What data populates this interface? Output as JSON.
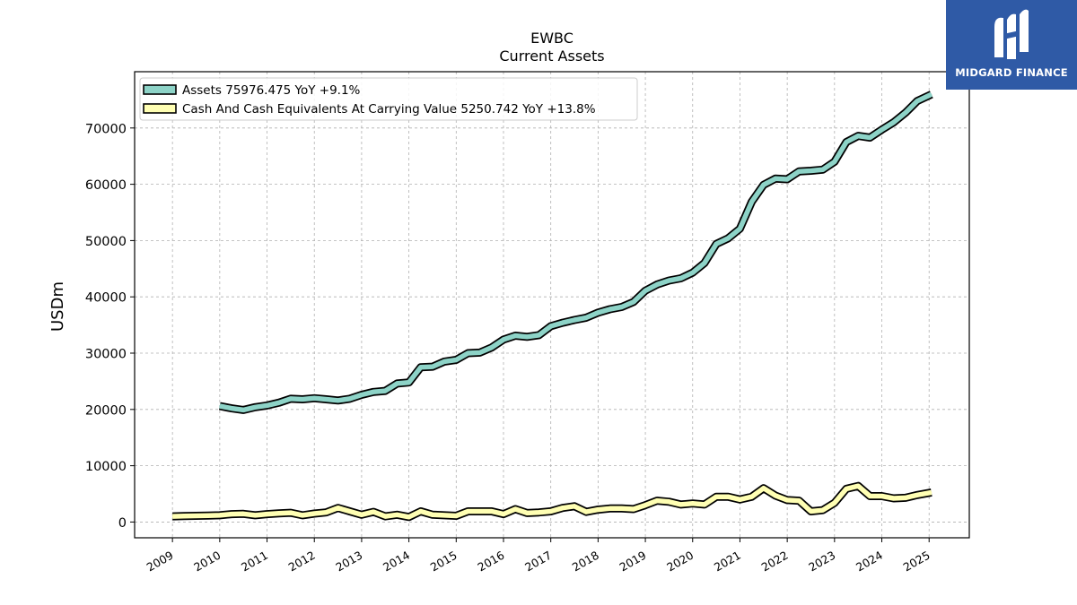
{
  "chart_data": {
    "type": "line",
    "title": "EWBC",
    "subtitle": "Current  Assets",
    "ylabel": "USDm",
    "xlabel": "",
    "ylim": [
      -2800,
      80000
    ],
    "xlim": [
      2008.2,
      2025.85
    ],
    "yticks": [
      0,
      10000,
      20000,
      30000,
      40000,
      50000,
      60000,
      70000
    ],
    "xticks": [
      "2009",
      "2010",
      "2011",
      "2012",
      "2013",
      "2014",
      "2015",
      "2016",
      "2017",
      "2018",
      "2019",
      "2020",
      "2021",
      "2022",
      "2023",
      "2024",
      "2025"
    ],
    "grid": true,
    "legend_position": "top-left",
    "series": [
      {
        "name": "Assets",
        "legend_label": "Assets  75976.475 YoY +9.1%",
        "color": "#8dd3c7",
        "points": [
          [
            2010.0,
            20600
          ],
          [
            2010.25,
            20200
          ],
          [
            2010.5,
            19900
          ],
          [
            2010.75,
            20400
          ],
          [
            2011.0,
            20700
          ],
          [
            2011.25,
            21200
          ],
          [
            2011.5,
            21900
          ],
          [
            2011.75,
            21800
          ],
          [
            2012.0,
            22000
          ],
          [
            2012.25,
            21800
          ],
          [
            2012.5,
            21600
          ],
          [
            2012.75,
            21900
          ],
          [
            2013.0,
            22600
          ],
          [
            2013.25,
            23100
          ],
          [
            2013.5,
            23300
          ],
          [
            2013.75,
            24600
          ],
          [
            2014.0,
            24800
          ],
          [
            2014.25,
            27500
          ],
          [
            2014.5,
            27600
          ],
          [
            2014.75,
            28500
          ],
          [
            2015.0,
            28800
          ],
          [
            2015.25,
            30000
          ],
          [
            2015.5,
            30100
          ],
          [
            2015.75,
            31000
          ],
          [
            2016.0,
            32400
          ],
          [
            2016.25,
            33100
          ],
          [
            2016.5,
            32900
          ],
          [
            2016.75,
            33200
          ],
          [
            2017.0,
            34800
          ],
          [
            2017.25,
            35400
          ],
          [
            2017.5,
            35900
          ],
          [
            2017.75,
            36300
          ],
          [
            2018.0,
            37200
          ],
          [
            2018.25,
            37800
          ],
          [
            2018.5,
            38200
          ],
          [
            2018.75,
            39100
          ],
          [
            2019.0,
            41100
          ],
          [
            2019.25,
            42200
          ],
          [
            2019.5,
            42900
          ],
          [
            2019.75,
            43300
          ],
          [
            2020.0,
            44300
          ],
          [
            2020.25,
            46000
          ],
          [
            2020.5,
            49400
          ],
          [
            2020.75,
            50400
          ],
          [
            2021.0,
            52100
          ],
          [
            2021.25,
            56900
          ],
          [
            2021.5,
            59900
          ],
          [
            2021.75,
            61000
          ],
          [
            2022.0,
            60900
          ],
          [
            2022.25,
            62300
          ],
          [
            2022.5,
            62400
          ],
          [
            2022.75,
            62600
          ],
          [
            2023.0,
            64000
          ],
          [
            2023.25,
            67500
          ],
          [
            2023.5,
            68600
          ],
          [
            2023.75,
            68300
          ],
          [
            2024.0,
            69700
          ],
          [
            2024.25,
            71000
          ],
          [
            2024.5,
            72700
          ],
          [
            2024.75,
            74800
          ],
          [
            2025.05,
            75976
          ]
        ]
      },
      {
        "name": "Cash And Cash Equivalents At Carrying Value",
        "legend_label": "Cash And Cash Equivalents At Carrying Value  5250.742 YoY +13.8%",
        "color": "#ffffb3",
        "points": [
          [
            2009.0,
            1000
          ],
          [
            2009.25,
            1050
          ],
          [
            2009.5,
            1100
          ],
          [
            2009.75,
            1150
          ],
          [
            2010.0,
            1200
          ],
          [
            2010.25,
            1400
          ],
          [
            2010.5,
            1450
          ],
          [
            2010.75,
            1200
          ],
          [
            2011.0,
            1400
          ],
          [
            2011.25,
            1550
          ],
          [
            2011.5,
            1650
          ],
          [
            2011.75,
            1200
          ],
          [
            2012.0,
            1500
          ],
          [
            2012.25,
            1700
          ],
          [
            2012.5,
            2500
          ],
          [
            2012.75,
            1900
          ],
          [
            2013.0,
            1300
          ],
          [
            2013.25,
            1800
          ],
          [
            2013.5,
            1000
          ],
          [
            2013.75,
            1300
          ],
          [
            2014.0,
            900
          ],
          [
            2014.25,
            1900
          ],
          [
            2014.5,
            1300
          ],
          [
            2014.75,
            1200
          ],
          [
            2015.0,
            1100
          ],
          [
            2015.25,
            1900
          ],
          [
            2015.5,
            1900
          ],
          [
            2015.75,
            1900
          ],
          [
            2016.0,
            1400
          ],
          [
            2016.25,
            2300
          ],
          [
            2016.5,
            1600
          ],
          [
            2016.75,
            1700
          ],
          [
            2017.0,
            1900
          ],
          [
            2017.25,
            2500
          ],
          [
            2017.5,
            2800
          ],
          [
            2017.75,
            1800
          ],
          [
            2018.0,
            2200
          ],
          [
            2018.25,
            2400
          ],
          [
            2018.5,
            2400
          ],
          [
            2018.75,
            2300
          ],
          [
            2019.0,
            3000
          ],
          [
            2019.25,
            3800
          ],
          [
            2019.5,
            3600
          ],
          [
            2019.75,
            3100
          ],
          [
            2020.0,
            3300
          ],
          [
            2020.25,
            3100
          ],
          [
            2020.5,
            4500
          ],
          [
            2020.75,
            4500
          ],
          [
            2021.0,
            4000
          ],
          [
            2021.25,
            4500
          ],
          [
            2021.5,
            6000
          ],
          [
            2021.75,
            4700
          ],
          [
            2022.0,
            3900
          ],
          [
            2022.25,
            3800
          ],
          [
            2022.5,
            1900
          ],
          [
            2022.75,
            2100
          ],
          [
            2023.0,
            3400
          ],
          [
            2023.25,
            5900
          ],
          [
            2023.5,
            6400
          ],
          [
            2023.75,
            4600
          ],
          [
            2024.0,
            4600
          ],
          [
            2024.25,
            4200
          ],
          [
            2024.5,
            4300
          ],
          [
            2024.75,
            4800
          ],
          [
            2025.05,
            5250
          ]
        ]
      }
    ]
  },
  "brand": {
    "name": "MIDGARD FINANCE",
    "logo_icon": "midgard-logo-icon",
    "background_color": "#2f5aa6"
  }
}
